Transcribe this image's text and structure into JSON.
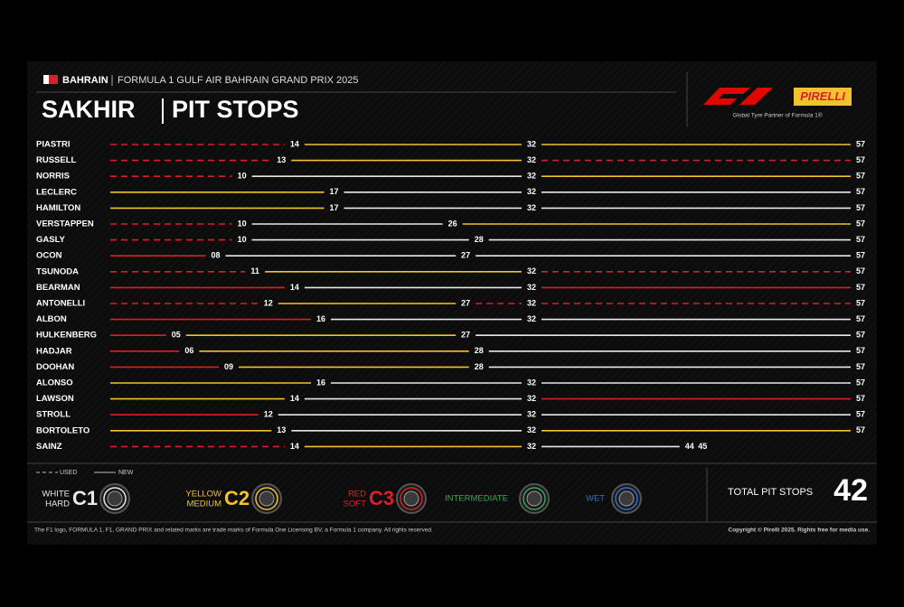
{
  "chart_data": {
    "type": "stints",
    "country": "BAHRAIN",
    "event": "FORMULA 1 GULF AIR BAHRAIN GRAND PRIX 2025",
    "title": "SAKHIR",
    "subtitle": "PIT STOPS",
    "brand": "PIRELLI",
    "partner": "Global Tyre Partner of Formula 1®",
    "xlim": [
      0,
      57
    ],
    "compound_colors": {
      "C1": "#e8e8e8",
      "C2": "#f2c22e",
      "C3": "#d8202c"
    },
    "drivers": [
      {
        "name": "PIASTRI",
        "stints": [
          {
            "compound": "C3",
            "new": false,
            "end": 14
          },
          {
            "compound": "C2",
            "new": true,
            "end": 32
          },
          {
            "compound": "C2",
            "new": true,
            "end": 57
          }
        ]
      },
      {
        "name": "RUSSELL",
        "stints": [
          {
            "compound": "C3",
            "new": false,
            "end": 13
          },
          {
            "compound": "C2",
            "new": true,
            "end": 32
          },
          {
            "compound": "C3",
            "new": false,
            "end": 57
          }
        ]
      },
      {
        "name": "NORRIS",
        "stints": [
          {
            "compound": "C3",
            "new": false,
            "end": 10
          },
          {
            "compound": "C1",
            "new": true,
            "end": 32
          },
          {
            "compound": "C2",
            "new": true,
            "end": 57
          }
        ]
      },
      {
        "name": "LECLERC",
        "stints": [
          {
            "compound": "C2",
            "new": true,
            "end": 17
          },
          {
            "compound": "C1",
            "new": true,
            "end": 32
          },
          {
            "compound": "C1",
            "new": true,
            "end": 57
          }
        ]
      },
      {
        "name": "HAMILTON",
        "stints": [
          {
            "compound": "C2",
            "new": true,
            "end": 17
          },
          {
            "compound": "C1",
            "new": true,
            "end": 32
          },
          {
            "compound": "C1",
            "new": true,
            "end": 57
          }
        ]
      },
      {
        "name": "VERSTAPPEN",
        "stints": [
          {
            "compound": "C3",
            "new": false,
            "end": 10
          },
          {
            "compound": "C1",
            "new": true,
            "end": 26
          },
          {
            "compound": "C2",
            "new": true,
            "end": 57
          }
        ]
      },
      {
        "name": "GASLY",
        "stints": [
          {
            "compound": "C3",
            "new": false,
            "end": 10
          },
          {
            "compound": "C1",
            "new": true,
            "end": 28
          },
          {
            "compound": "C1",
            "new": true,
            "end": 57
          }
        ]
      },
      {
        "name": "OCON",
        "stints": [
          {
            "compound": "C3",
            "new": true,
            "end": 8,
            "end_label": "08"
          },
          {
            "compound": "C1",
            "new": true,
            "end": 27
          },
          {
            "compound": "C1",
            "new": true,
            "end": 57
          }
        ]
      },
      {
        "name": "TSUNODA",
        "stints": [
          {
            "compound": "C3",
            "new": false,
            "end": 11
          },
          {
            "compound": "C2",
            "new": true,
            "end": 32
          },
          {
            "compound": "C3",
            "new": false,
            "end": 57
          }
        ]
      },
      {
        "name": "BEARMAN",
        "stints": [
          {
            "compound": "C3",
            "new": true,
            "end": 14
          },
          {
            "compound": "C1",
            "new": true,
            "end": 32
          },
          {
            "compound": "C3",
            "new": true,
            "end": 57
          }
        ]
      },
      {
        "name": "ANTONELLI",
        "stints": [
          {
            "compound": "C3",
            "new": false,
            "end": 12
          },
          {
            "compound": "C2",
            "new": true,
            "end": 27
          },
          {
            "compound": "C3",
            "new": false,
            "end": 32
          },
          {
            "compound": "C3",
            "new": false,
            "end": 57
          }
        ]
      },
      {
        "name": "ALBON",
        "stints": [
          {
            "compound": "C3",
            "new": true,
            "end": 16
          },
          {
            "compound": "C1",
            "new": true,
            "end": 32
          },
          {
            "compound": "C1",
            "new": true,
            "end": 57
          }
        ]
      },
      {
        "name": "HULKENBERG",
        "stints": [
          {
            "compound": "C3",
            "new": true,
            "end": 5,
            "end_label": "05"
          },
          {
            "compound": "C2",
            "new": true,
            "end": 27
          },
          {
            "compound": "C1",
            "new": true,
            "end": 57
          }
        ]
      },
      {
        "name": "HADJAR",
        "stints": [
          {
            "compound": "C3",
            "new": true,
            "end": 6,
            "end_label": "06"
          },
          {
            "compound": "C2",
            "new": true,
            "end": 28
          },
          {
            "compound": "C1",
            "new": true,
            "end": 57
          }
        ]
      },
      {
        "name": "DOOHAN",
        "stints": [
          {
            "compound": "C3",
            "new": true,
            "end": 9,
            "end_label": "09"
          },
          {
            "compound": "C2",
            "new": true,
            "end": 28
          },
          {
            "compound": "C1",
            "new": true,
            "end": 57
          }
        ]
      },
      {
        "name": "ALONSO",
        "stints": [
          {
            "compound": "C2",
            "new": true,
            "end": 16
          },
          {
            "compound": "C1",
            "new": true,
            "end": 32
          },
          {
            "compound": "C1",
            "new": true,
            "end": 57
          }
        ]
      },
      {
        "name": "LAWSON",
        "stints": [
          {
            "compound": "C2",
            "new": true,
            "end": 14
          },
          {
            "compound": "C1",
            "new": true,
            "end": 32
          },
          {
            "compound": "C3",
            "new": true,
            "end": 57
          }
        ]
      },
      {
        "name": "STROLL",
        "stints": [
          {
            "compound": "C3",
            "new": true,
            "end": 12
          },
          {
            "compound": "C1",
            "new": true,
            "end": 32
          },
          {
            "compound": "C1",
            "new": true,
            "end": 57
          }
        ]
      },
      {
        "name": "BORTOLETO",
        "stints": [
          {
            "compound": "C2",
            "new": true,
            "end": 13
          },
          {
            "compound": "C1",
            "new": true,
            "end": 32
          },
          {
            "compound": "C2",
            "new": true,
            "end": 57
          }
        ]
      },
      {
        "name": "SAINZ",
        "stints": [
          {
            "compound": "C3",
            "new": false,
            "end": 14
          },
          {
            "compound": "C2",
            "new": true,
            "end": 32
          },
          {
            "compound": "C1",
            "new": true,
            "end": 44
          },
          {
            "compound": "C3",
            "new": false,
            "end": 45
          }
        ]
      }
    ],
    "legend": {
      "used": "USED",
      "new": "NEW"
    },
    "tyres": [
      {
        "line1": "WHITE",
        "line2": "HARD",
        "code": "C1",
        "color": "#e8e8e8"
      },
      {
        "line1": "YELLOW",
        "line2": "MEDIUM",
        "code": "C2",
        "color": "#f2c22e"
      },
      {
        "line1": "RED",
        "line2": "SOFT",
        "code": "C3",
        "color": "#d8202c"
      },
      {
        "label": "INTERMEDIATE",
        "color": "#3aa655"
      },
      {
        "label": "WET",
        "color": "#2f6fd0"
      }
    ],
    "total_label": "TOTAL PIT STOPS",
    "total": 42,
    "footer_left": "The F1 logo, FORMULA 1, F1, GRAND PRIX and related marks are trade marks of Formula One Licensing BV, a Formula 1 company. All rights reserved.",
    "footer_right": "Copyright © Pirelli 2025. Rights free for media use."
  }
}
